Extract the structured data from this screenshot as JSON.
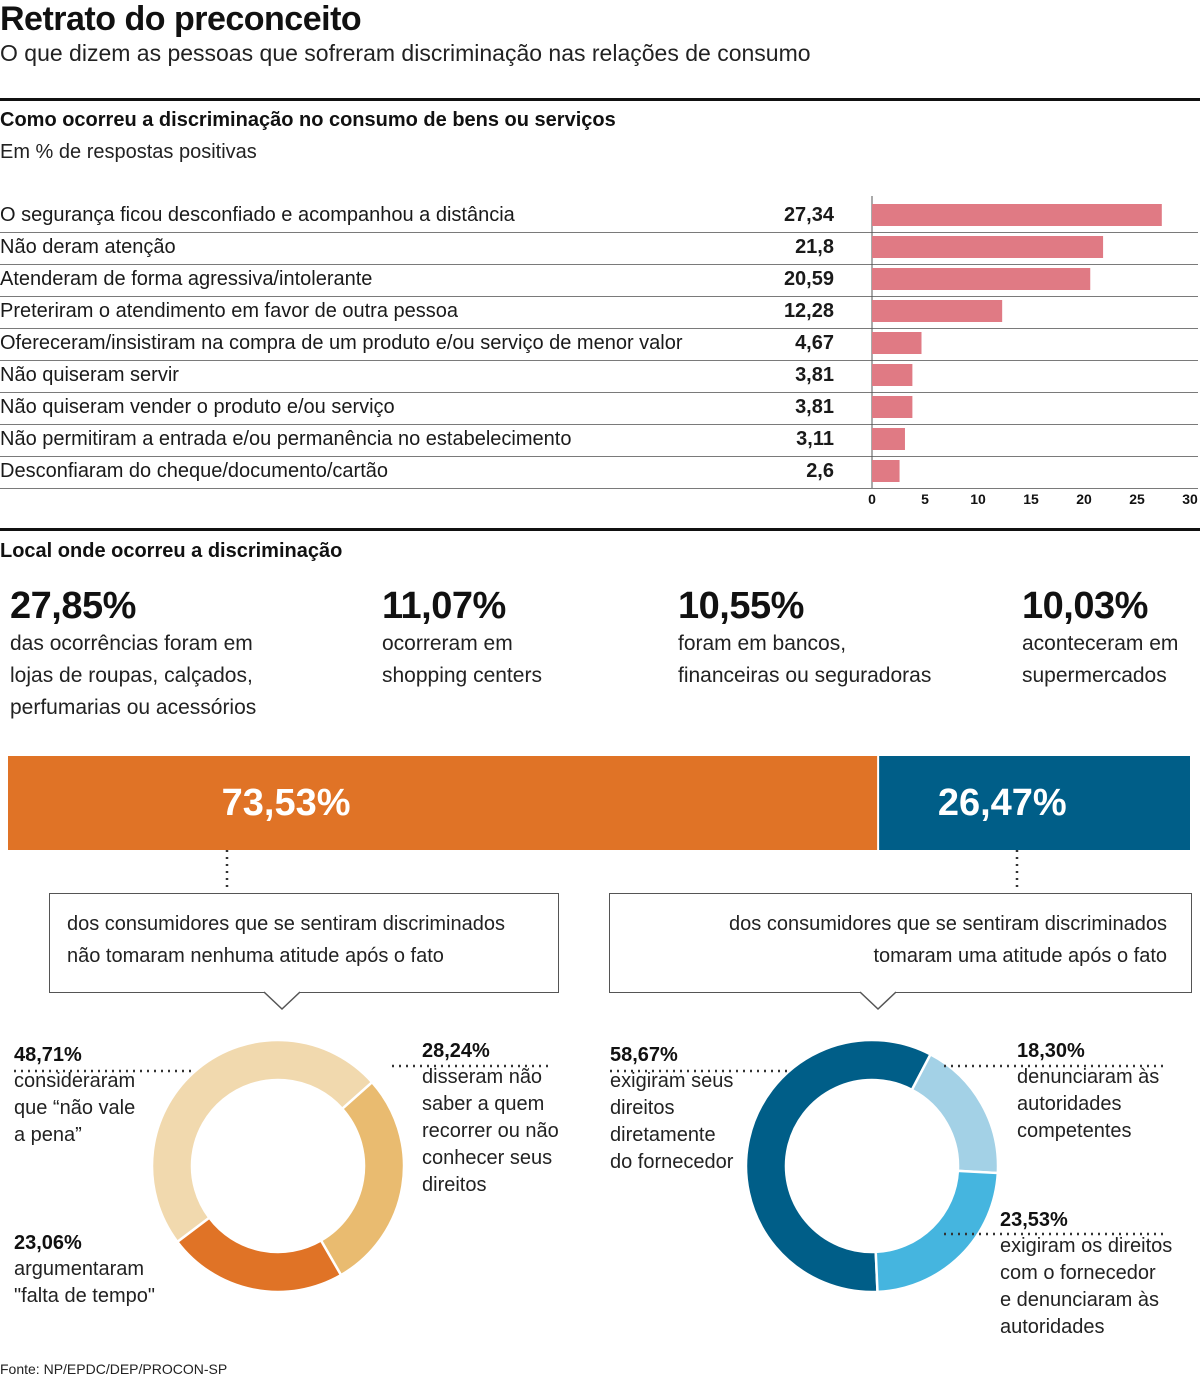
{
  "header": {
    "title": "Retrato do preconceito",
    "subtitle": "O que dizem as pessoas que sofreram discriminação nas relações de consumo"
  },
  "section1": {
    "title": "Como ocorreu a discriminação no consumo de bens ou serviços",
    "subtitle": "Em % de respostas positivas"
  },
  "section2": {
    "title": "Local onde ocorreu a discriminação"
  },
  "stats": [
    {
      "value": "27,85%",
      "l1": "das ocorrências foram em",
      "l2": "lojas de roupas, calçados,",
      "l3": "perfumarias ou acessórios"
    },
    {
      "value": "11,07%",
      "l1": "ocorreram em",
      "l2": "shopping centers",
      "l3": ""
    },
    {
      "value": "10,55%",
      "l1": "foram em bancos,",
      "l2": "financeiras ou seguradoras",
      "l3": ""
    },
    {
      "value": "10,03%",
      "l1": "aconteceram em",
      "l2": "supermercados",
      "l3": ""
    }
  ],
  "split": {
    "left_label": "73,53%",
    "right_label": "26,47%",
    "left_text_l1": "dos consumidores que se sentiram discriminados",
    "left_text_l2": "não tomaram nenhuma atitude após o fato",
    "right_text_l1": "dos consumidores que se sentiram discriminados",
    "right_text_l2": "tomaram uma atitude após o fato"
  },
  "donut_left": {
    "a": {
      "pct": "48,71%",
      "l1": "consideraram",
      "l2": "que “não vale",
      "l3": "a pena”"
    },
    "b": {
      "pct": "28,24%",
      "l1": "disseram não",
      "l2": "saber a quem",
      "l3": "recorrer ou não",
      "l4": "conhecer seus",
      "l5": "direitos"
    },
    "c": {
      "pct": "23,06%",
      "l1": "argumentaram",
      "l2": "\"falta de tempo\""
    }
  },
  "donut_right": {
    "a": {
      "pct": "58,67%",
      "l1": "exigiram seus",
      "l2": "direitos",
      "l3": "diretamente",
      "l4": "do fornecedor"
    },
    "b": {
      "pct": "18,30%",
      "l1": "denunciaram às",
      "l2": "autoridades",
      "l3": "competentes"
    },
    "c": {
      "pct": "23,53%",
      "l1": "exigiram os direitos",
      "l2": "com o fornecedor",
      "l3": "e denunciaram às",
      "l4": "autoridades"
    }
  },
  "source": "Fonte: NP/EPDC/DEP/PROCON-SP",
  "colors": {
    "bar": "#e07a84",
    "orange": "#e07326",
    "blue": "#005e88",
    "light_orange": "#f1d9ae",
    "mid_orange": "#e9bb70",
    "light_blue": "#a3d1e6",
    "sky_blue": "#45b5df"
  },
  "chart_data": [
    {
      "type": "bar",
      "orientation": "horizontal",
      "title": "Como ocorreu a discriminação no consumo de bens ou serviços",
      "subtitle": "Em % de respostas positivas",
      "categories": [
        "O segurança ficou desconfiado e acompanhou a distância",
        "Não deram atenção",
        "Atenderam de forma agressiva/intolerante",
        "Preteriram o atendimento em favor de outra pessoa",
        "Ofereceram/insistiram na compra de um produto e/ou serviço de menor valor",
        "Não quiseram servir",
        "Não quiseram vender o produto e/ou serviço",
        "Não permitiram a entrada e/ou permanência no estabelecimento",
        "Desconfiaram do cheque/documento/cartão"
      ],
      "values": [
        27.34,
        21.8,
        20.59,
        12.28,
        4.67,
        3.81,
        3.81,
        3.11,
        2.6
      ],
      "value_labels": [
        "27,34",
        "21,8",
        "20,59",
        "12,28",
        "4,67",
        "3,81",
        "3,81",
        "3,11",
        "2,6"
      ],
      "xlim": [
        0,
        30
      ],
      "xticks": [
        "0",
        "5",
        "10",
        "15",
        "20",
        "25",
        "30"
      ],
      "grid": false
    },
    {
      "type": "bar",
      "orientation": "stacked-horizontal",
      "categories": [
        "não tomaram nenhuma atitude",
        "tomaram uma atitude"
      ],
      "values": [
        73.53,
        26.47
      ]
    },
    {
      "type": "pie",
      "variant": "donut",
      "labels": [
        "consideraram que “não vale a pena”",
        "disseram não saber a quem recorrer ou não conhecer seus direitos",
        "argumentaram \"falta de tempo\""
      ],
      "values": [
        48.71,
        28.24,
        23.06
      ]
    },
    {
      "type": "pie",
      "variant": "donut",
      "labels": [
        "exigiram seus direitos diretamente do fornecedor",
        "denunciaram às autoridades competentes",
        "exigiram os direitos com o fornecedor e denunciaram às autoridades"
      ],
      "values": [
        58.67,
        18.3,
        23.53
      ]
    }
  ]
}
